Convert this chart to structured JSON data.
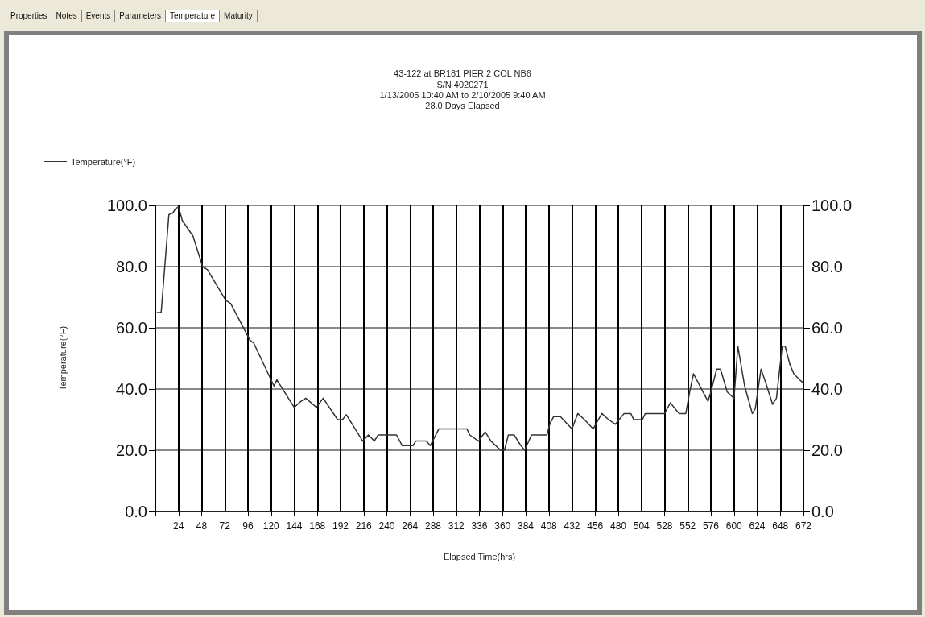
{
  "chart_data": {
    "type": "line",
    "title": "43-122 at BR181 PIER 2 COL NB6",
    "subtitle": "S/N 4020271\n1/13/2005 10:40 AM to 2/10/2005 9:40 AM\n28.0 Days Elapsed",
    "xlabel": "Elapsed Time(hrs)",
    "ylabel": "Temperature(°F)",
    "annotations": [
      "Properties",
      "Notes",
      "Events",
      "Parameters",
      "Temperature",
      "Maturity"
    ],
    "legend": "top left",
    "grid": true,
    "marker": "none",
    "line_style": "solid",
    "xlim": [
      0,
      672
    ],
    "xticks": [
      {
        "value": 0,
        "label": null
      },
      24,
      48,
      72,
      96,
      120,
      144,
      168,
      192,
      216,
      240,
      264,
      288,
      312,
      336,
      360,
      384,
      408,
      432,
      456,
      480,
      504,
      528,
      552,
      576,
      600,
      624,
      648,
      672
    ],
    "ylim": [
      0,
      100
    ],
    "yticks": [
      {
        "value": 0,
        "label": "0.0"
      },
      {
        "value": 20,
        "label": "20.0"
      },
      {
        "value": 40,
        "label": "40.0"
      },
      {
        "value": 60,
        "label": "60.0"
      },
      {
        "value": 80,
        "label": "80.0"
      },
      {
        "value": 100,
        "label": "100.0"
      }
    ],
    "y2lim": [
      0,
      100
    ],
    "y2ticks": [
      {
        "value": 0,
        "label": "0.0"
      },
      {
        "value": 20,
        "label": "20.0"
      },
      {
        "value": 40,
        "label": "40.0"
      },
      {
        "value": 60,
        "label": "60.0"
      },
      {
        "value": 80,
        "label": "80.0"
      },
      {
        "value": 100,
        "label": "100.0"
      }
    ],
    "series": [
      {
        "name": "Temperature(°F)",
        "color": "#333333",
        "x": [
          2,
          6,
          14,
          18,
          21,
          24,
          28,
          39,
          49,
          54,
          73,
          78,
          98,
          102,
          123,
          126,
          144,
          151,
          156,
          167,
          174,
          189,
          194,
          198,
          215,
          221,
          227,
          231,
          250,
          256,
          267,
          270,
          281,
          285,
          294,
          323,
          326,
          335,
          342,
          348,
          358,
          362,
          366,
          372,
          379,
          383,
          390,
          406,
          409,
          413,
          420,
          432,
          438,
          445,
          454,
          463,
          470,
          477,
          486,
          493,
          496,
          505,
          508,
          528,
          534,
          543,
          550,
          554,
          558,
          568,
          573,
          576,
          582,
          586,
          593,
          600,
          604,
          611,
          619,
          622,
          628,
          633,
          640,
          644,
          650,
          653,
          658,
          662,
          668,
          672
        ],
        "values": [
          65,
          65,
          97,
          97.5,
          99,
          99.5,
          95,
          90,
          80,
          79,
          69,
          68,
          56,
          55,
          41,
          43,
          34,
          36,
          37,
          34,
          37,
          30,
          30,
          31.6,
          23,
          25,
          23,
          25,
          25,
          21.5,
          21.5,
          23,
          23,
          21.5,
          27,
          27,
          25,
          23,
          26,
          23,
          20,
          20,
          25,
          25,
          21.5,
          20,
          25,
          25,
          28.5,
          31,
          31,
          27,
          32,
          30,
          27,
          32,
          30,
          28.5,
          32,
          32,
          30,
          30,
          32,
          32,
          35.5,
          32,
          32,
          39,
          45,
          39,
          36,
          39,
          46.5,
          46.5,
          39,
          37,
          54,
          41,
          32,
          33.5,
          46.5,
          42,
          35,
          37,
          54,
          54,
          48,
          45,
          43,
          42
        ]
      }
    ]
  }
}
